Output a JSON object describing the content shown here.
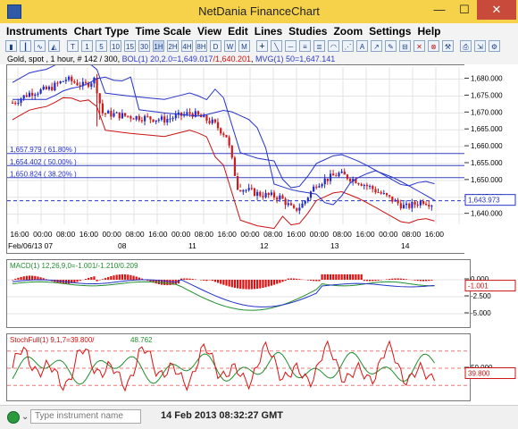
{
  "window": {
    "title": "NetDania FinanceChart",
    "minimize": "—",
    "maximize": "☐",
    "close": "✕"
  },
  "menu": [
    "Instruments",
    "Chart Type",
    "Time Scale",
    "View",
    "Edit",
    "Lines",
    "Studies",
    "Zoom",
    "Settings",
    "Help"
  ],
  "toolbar": {
    "timescale": [
      "T",
      "1",
      "5",
      "10",
      "15",
      "30",
      "1H",
      "2H",
      "4H",
      "8H",
      "D",
      "W",
      "M"
    ]
  },
  "info": {
    "instrument": "Gold, spot , 1 hour, # 142 / 300,",
    "bol": "BOL(1) 20,2.0=1,649.017",
    "bol_low": "/1,640.201",
    "mvg": "MVG(1) 50=1,647.141"
  },
  "main": {
    "yticks": [
      "1,680.000",
      "1,675.000",
      "1,670.000",
      "1,665.000",
      "1,660.000",
      "1,655.000",
      "1,650.000",
      "1,645.000",
      "1,640.000"
    ],
    "current": "1,643.973",
    "fib": [
      "1,657.979 ( 61.80% )",
      "1,654.402 ( 50.00% )",
      "1,650.824 ( 38.20% )"
    ],
    "times": [
      "16:00",
      "00:00",
      "08:00",
      "16:00",
      "00:00",
      "08:00",
      "16:00",
      "00:00",
      "08:00",
      "16:00",
      "00:00",
      "08:00",
      "16:00",
      "00:00",
      "08:00",
      "16:00",
      "00:00",
      "08:00",
      "16:00"
    ],
    "dates": [
      "Feb/06/13 07",
      "08",
      "11",
      "12",
      "13",
      "14"
    ],
    "colors": {
      "bull": "#1f2cc8",
      "bear": "#d11a1a",
      "bollinger": "#2433c8",
      "lower_band": "#cc1111"
    }
  },
  "macd": {
    "label": "MACD(1) 12,26,9,0=-1.001/-1.210/0.209",
    "yticks": [
      "0.000",
      "-2.500",
      "-5.000"
    ],
    "current": "-1.001"
  },
  "stoch": {
    "label": "StochFull(1) 9,1,7=39.800/",
    "label_k": "48.762",
    "yticks": [
      "50.000"
    ],
    "current": "39.800"
  },
  "status": {
    "placeholder": "Type instrument name",
    "time": "14 Feb 2013 08:32:27 GMT"
  }
}
